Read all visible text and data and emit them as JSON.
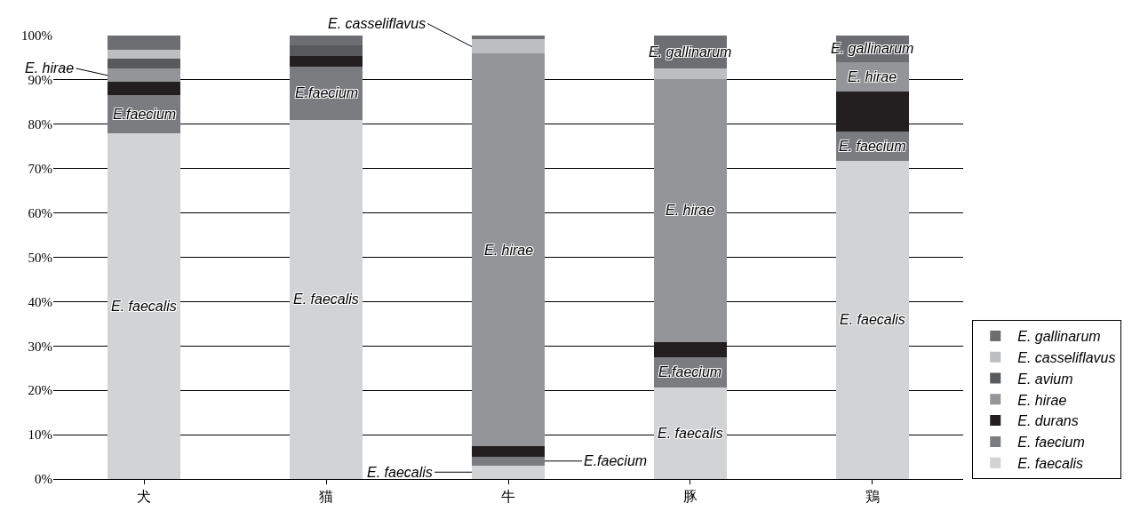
{
  "chart_data": {
    "type": "bar",
    "stacked": true,
    "categories": [
      "犬",
      "猫",
      "牛",
      "豚",
      "鶏"
    ],
    "series": [
      {
        "name": "E. faecalis",
        "color": "#d2d3d5",
        "values": [
          78,
          81,
          3.1,
          20.6,
          71.8
        ],
        "value_labels": [
          "E. faecalis",
          "E. faecalis",
          "E. faecalis",
          "E. faecalis",
          "E. faecalis"
        ]
      },
      {
        "name": "E. faecium",
        "color": "#7b7c80",
        "values": [
          8.5,
          12,
          1.9,
          6.9,
          6.5
        ],
        "value_labels": [
          "E.faecium",
          "E.faecium",
          "E.faecium",
          "E.faecium",
          "E. faecium"
        ]
      },
      {
        "name": "E. durans",
        "color": "#231f20",
        "values": [
          3,
          2.3,
          2.4,
          3.4,
          9
        ]
      },
      {
        "name": "E. hirae",
        "color": "#939598",
        "values": [
          3,
          0,
          88.5,
          59.3,
          6.7
        ],
        "value_labels": [
          "E. hirae",
          null,
          "E. hirae",
          "E. hirae",
          "E. hirae"
        ]
      },
      {
        "name": "E. avium",
        "color": "#58595b",
        "values": [
          2.2,
          2.4,
          0,
          0,
          0
        ]
      },
      {
        "name": "E. casseliflavus",
        "color": "#bcbec0",
        "values": [
          2.1,
          0,
          3.2,
          2.3,
          0
        ],
        "value_labels": [
          null,
          null,
          "E. casseliflavus",
          null,
          null
        ]
      },
      {
        "name": "E. gallinarum",
        "color": "#6d6e71",
        "values": [
          3.2,
          2.3,
          0.9,
          7.5,
          6
        ],
        "value_labels": [
          null,
          null,
          null,
          "E. gallinarum",
          "E. gallinarum"
        ]
      }
    ],
    "ylim": [
      0,
      100
    ],
    "yticks": [
      {
        "value": 0,
        "label": "0%"
      },
      {
        "value": 10,
        "label": "10%"
      },
      {
        "value": 20,
        "label": "20%"
      },
      {
        "value": 30,
        "label": "30%"
      },
      {
        "value": 40,
        "label": "40%"
      },
      {
        "value": 50,
        "label": "50%"
      },
      {
        "value": 60,
        "label": "60%"
      },
      {
        "value": 70,
        "label": "70%"
      },
      {
        "value": 80,
        "label": "80%"
      },
      {
        "value": 90,
        "label": "90%"
      },
      {
        "value": 100,
        "label": "100%"
      }
    ],
    "grid": "y",
    "legend": "right"
  }
}
